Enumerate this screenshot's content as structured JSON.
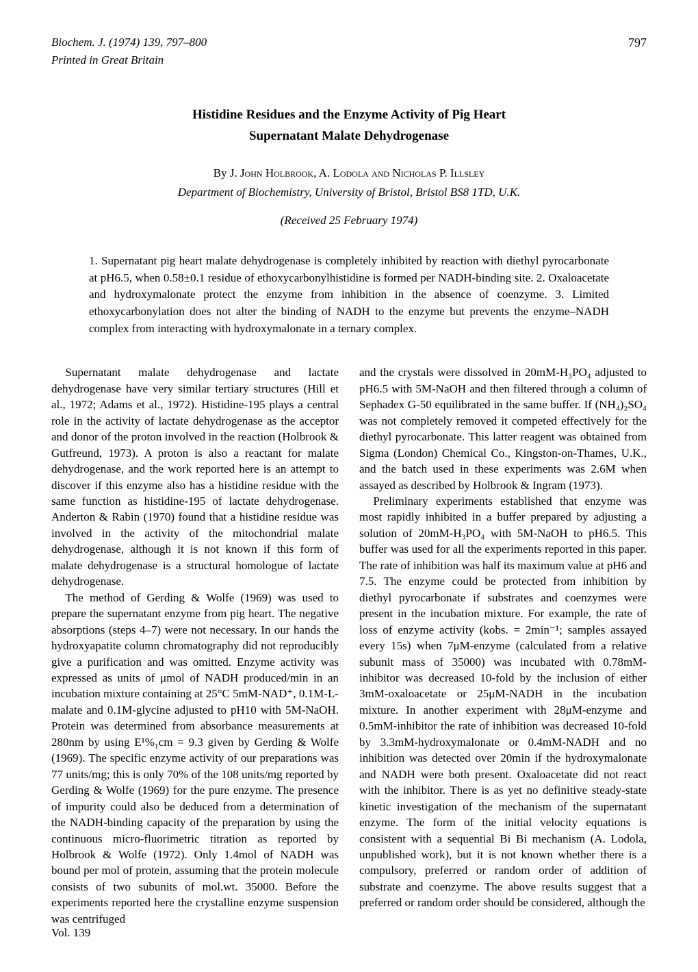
{
  "header": {
    "journal_line1": "Biochem. J. (1974) 139, 797–800",
    "journal_line2": "Printed in Great Britain",
    "page_number": "797"
  },
  "title": {
    "line1": "Histidine Residues and the Enzyme Activity of Pig Heart",
    "line2": "Supernatant Malate Dehydrogenase"
  },
  "authors": {
    "prefix": "By ",
    "text": "J. John Holbrook, A. Lodola and Nicholas P. Illsley"
  },
  "affiliation": "Department of Biochemistry, University of Bristol, Bristol BS8 1TD, U.K.",
  "received": "(Received 25 February 1974)",
  "abstract": "1. Supernatant pig heart malate dehydrogenase is completely inhibited by reaction with diethyl pyrocarbonate at pH6.5, when 0.58±0.1 residue of ethoxycarbonylhistidine is formed per NADH-binding site. 2. Oxaloacetate and hydroxymalonate protect the enzyme from inhibition in the absence of coenzyme. 3. Limited ethoxycarbonylation does not alter the binding of NADH to the enzyme but prevents the enzyme–NADH complex from interacting with hydroxymalonate in a ternary complex.",
  "body": {
    "left": {
      "p1": "Supernatant malate dehydrogenase and lactate dehydrogenase have very similar tertiary structures (Hill et al., 1972; Adams et al., 1972). Histidine-195 plays a central role in the activity of lactate dehydrogenase as the acceptor and donor of the proton involved in the reaction (Holbrook & Gutfreund, 1973). A proton is also a reactant for malate dehydrogenase, and the work reported here is an attempt to discover if this enzyme also has a histidine residue with the same function as histidine-195 of lactate dehydrogenase. Anderton & Rabin (1970) found that a histidine residue was involved in the activity of the mitochondrial malate dehydrogenase, although it is not known if this form of malate dehydrogenase is a structural homologue of lactate dehydrogenase.",
      "p2": "The method of Gerding & Wolfe (1969) was used to prepare the supernatant enzyme from pig heart. The negative absorptions (steps 4–7) were not necessary. In our hands the hydroxyapatite column chromatography did not reproducibly give a purification and was omitted. Enzyme activity was expressed as units of μmol of NADH produced/min in an incubation mixture containing at 25°C 5mM-NAD⁺, 0.1M-L-malate and 0.1M-glycine adjusted to pH10 with 5M-NaOH. Protein was determined from absorbance measurements at 280nm by using E¹%₁cm = 9.3 given by Gerding & Wolfe (1969). The specific enzyme activity of our preparations was 77 units/mg; this is only 70% of the 108 units/mg reported by Gerding & Wolfe (1969) for the pure enzyme. The presence of impurity could also be deduced from a determination of the NADH-binding capacity of the preparation by using the continuous micro-fluorimetric titration as reported by Holbrook & Wolfe (1972). Only 1.4mol of NADH was bound per mol of protein, assuming that the protein molecule consists of two subunits of mol.wt. 35000. Before the experiments reported here the crystalline enzyme suspension was centrifuged"
    },
    "right": {
      "p1": "and the crystals were dissolved in 20mM-H₃PO₄ adjusted to pH6.5 with 5M-NaOH and then filtered through a column of Sephadex G-50 equilibrated in the same buffer. If (NH₄)₂SO₄ was not completely removed it competed effectively for the diethyl pyrocarbonate. This latter reagent was obtained from Sigma (London) Chemical Co., Kingston-on-Thames, U.K., and the batch used in these experiments was 2.6M when assayed as described by Holbrook & Ingram (1973).",
      "p2": "Preliminary experiments established that enzyme was most rapidly inhibited in a buffer prepared by adjusting a solution of 20mM-H₃PO₄ with 5M-NaOH to pH6.5. This buffer was used for all the experiments reported in this paper. The rate of inhibition was half its maximum value at pH6 and 7.5. The enzyme could be protected from inhibition by diethyl pyrocarbonate if substrates and coenzymes were present in the incubation mixture. For example, the rate of loss of enzyme activity (kobs. = 2min⁻¹; samples assayed every 15s) when 7μM-enzyme (calculated from a relative subunit mass of 35000) was incubated with 0.78mM-inhibitor was decreased 10-fold by the inclusion of either 3mM-oxaloacetate or 25μM-NADH in the incubation mixture. In another experiment with 28μM-enzyme and 0.5mM-inhibitor the rate of inhibition was decreased 10-fold by 3.3mM-hydroxymalonate or 0.4mM-NADH and no inhibition was detected over 20min if the hydroxymalonate and NADH were both present. Oxaloacetate did not react with the inhibitor. There is as yet no definitive steady-state kinetic investigation of the mechanism of the supernatant enzyme. The form of the initial velocity equations is consistent with a sequential Bi Bi mechanism (A. Lodola, unpublished work), but it is not known whether there is a compulsory, preferred or random order of addition of substrate and coenzyme. The above results suggest that a preferred or random order should be considered, although the"
    }
  },
  "footer": {
    "volume": "Vol. 139"
  }
}
